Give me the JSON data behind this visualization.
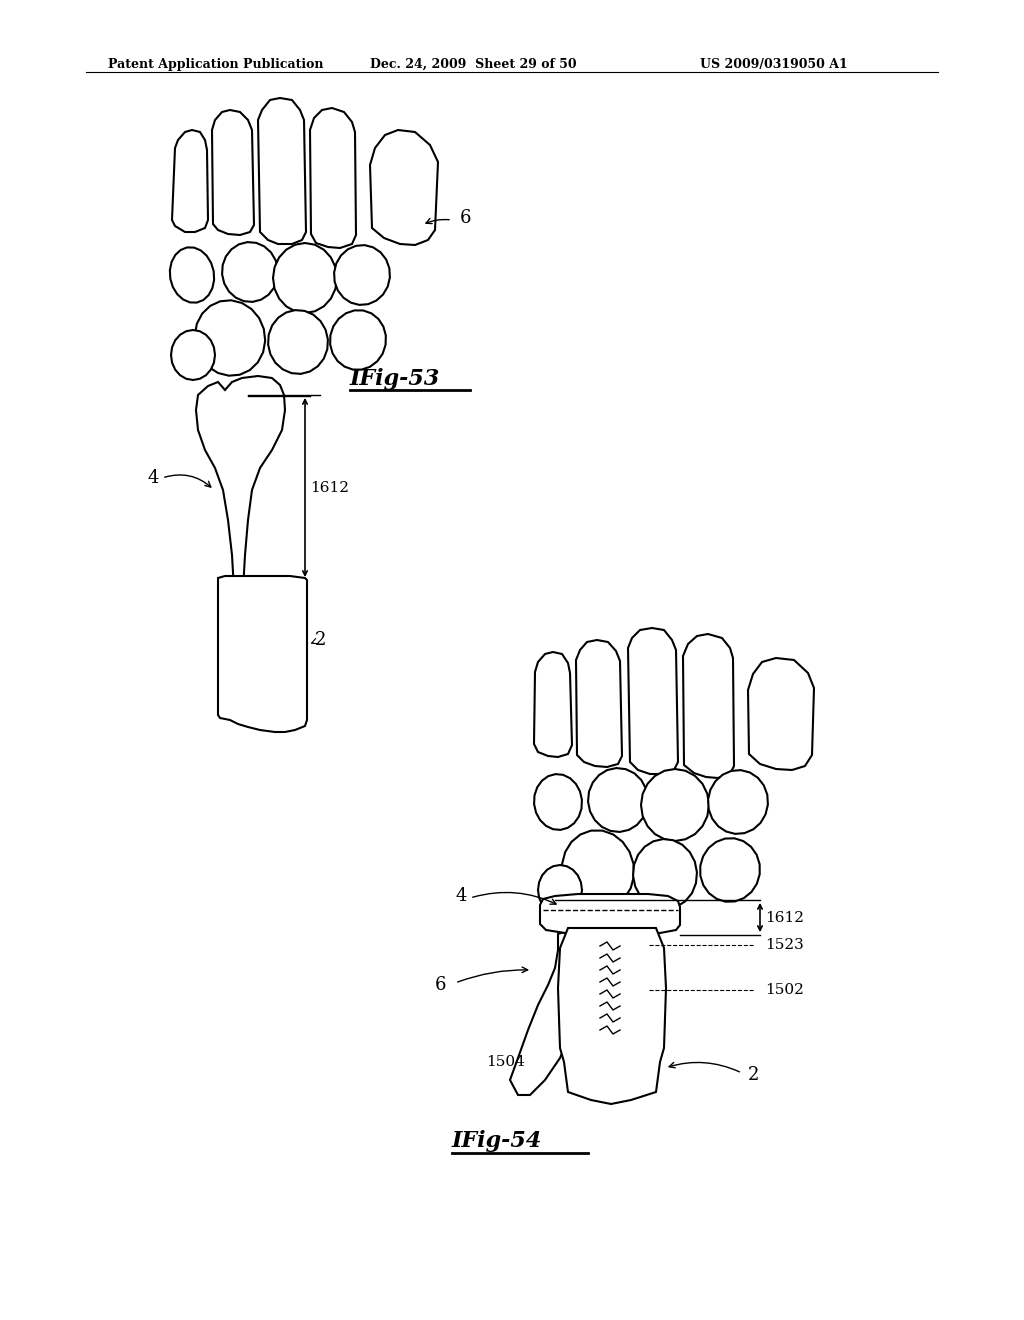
{
  "bg_color": "#ffffff",
  "header_text": "Patent Application Publication",
  "header_date": "Dec. 24, 2009  Sheet 29 of 50",
  "header_patent": "US 2009/0319050 A1",
  "fig53_label": "IFig-53",
  "fig54_label": "IFig-54",
  "line_color": "#000000",
  "text_color": "#000000"
}
